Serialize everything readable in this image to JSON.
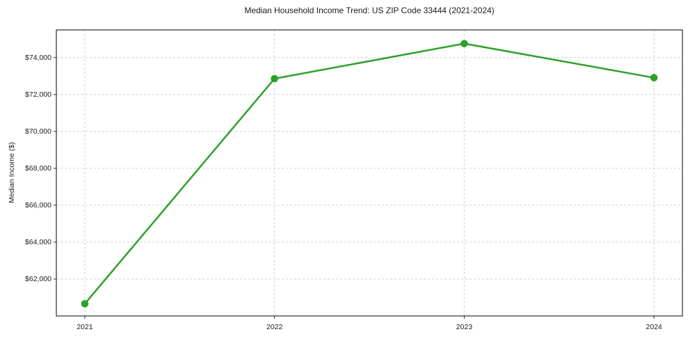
{
  "chart_data": {
    "type": "line",
    "title": "Median Household Income Trend: US ZIP Code 33444 (2021-2024)",
    "xlabel": "",
    "ylabel": "Median Income ($)",
    "series": [
      {
        "name": "Median household income",
        "x": [
          2021,
          2022,
          2023,
          2024
        ],
        "values": [
          60660,
          72860,
          74760,
          72910
        ]
      }
    ],
    "x_tick_labels": [
      "2021",
      "2022",
      "2023",
      "2024"
    ],
    "y_ticks": [
      62000,
      64000,
      66000,
      68000,
      70000,
      72000,
      74000
    ],
    "y_tick_labels": [
      "$62,000",
      "$64,000",
      "$66,000",
      "$68,000",
      "$70,000",
      "$72,000",
      "$74,000"
    ],
    "xlim": [
      2020.85,
      2024.15
    ],
    "ylim": [
      60000,
      75500
    ],
    "grid": true,
    "grid_style": "dashed",
    "legend": "none",
    "line_color": "#2ca02c",
    "marker": "circle",
    "marker_color": "#2ca02c",
    "background_color": "#ffffff",
    "frame_color": "#2b2b2b",
    "grid_color": "#cfcfcf",
    "text_color": "#1a1a1a"
  }
}
